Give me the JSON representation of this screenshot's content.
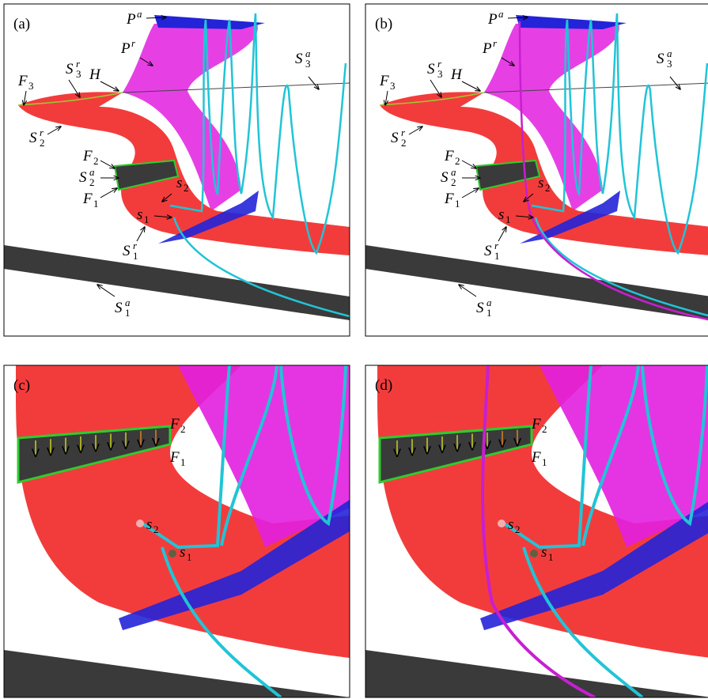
{
  "panels": [
    {
      "label": "(a)",
      "annotations": [
        {
          "base": "P",
          "sup": "a"
        },
        {
          "base": "P",
          "sup": "r"
        },
        {
          "base": "S",
          "sub": "3",
          "sup": "a"
        },
        {
          "base": "S",
          "sub": "3",
          "sup": "r"
        },
        {
          "base": "H"
        },
        {
          "base": "F",
          "sub": "3"
        },
        {
          "base": "S",
          "sub": "2",
          "sup": "r"
        },
        {
          "base": "F",
          "sub": "2"
        },
        {
          "base": "S",
          "sub": "2",
          "sup": "a"
        },
        {
          "base": "F",
          "sub": "1"
        },
        {
          "base": "s",
          "sub": "2"
        },
        {
          "base": "s",
          "sub": "1"
        },
        {
          "base": "S",
          "sub": "1",
          "sup": "r"
        },
        {
          "base": "S",
          "sub": "1",
          "sup": "a"
        }
      ]
    },
    {
      "label": "(b)",
      "annotations": [
        {
          "base": "P",
          "sup": "a"
        },
        {
          "base": "P",
          "sup": "r"
        },
        {
          "base": "S",
          "sub": "3",
          "sup": "a"
        },
        {
          "base": "S",
          "sub": "3",
          "sup": "r"
        },
        {
          "base": "H"
        },
        {
          "base": "F",
          "sub": "3"
        },
        {
          "base": "S",
          "sub": "2",
          "sup": "r"
        },
        {
          "base": "F",
          "sub": "2"
        },
        {
          "base": "S",
          "sub": "2",
          "sup": "a"
        },
        {
          "base": "F",
          "sub": "1"
        },
        {
          "base": "s",
          "sub": "2"
        },
        {
          "base": "s",
          "sub": "1"
        },
        {
          "base": "S",
          "sub": "1",
          "sup": "r"
        },
        {
          "base": "S",
          "sub": "1",
          "sup": "a"
        }
      ]
    },
    {
      "label": "(c)",
      "annotations": [
        {
          "base": "F",
          "sub": "2"
        },
        {
          "base": "F",
          "sub": "1"
        },
        {
          "base": "s",
          "sub": "2"
        },
        {
          "base": "s",
          "sub": "1"
        }
      ]
    },
    {
      "label": "(d)",
      "annotations": [
        {
          "base": "F",
          "sub": "2"
        },
        {
          "base": "F",
          "sub": "1"
        },
        {
          "base": "s",
          "sub": "2"
        },
        {
          "base": "s",
          "sub": "1"
        }
      ]
    }
  ]
}
